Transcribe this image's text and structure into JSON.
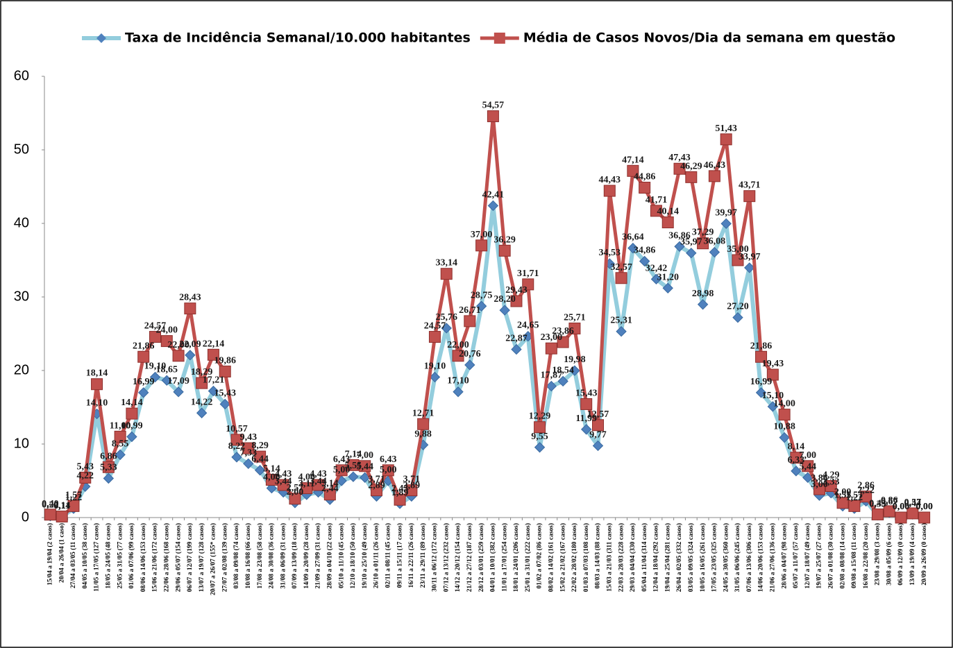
{
  "chart_data": {
    "type": "line",
    "categories": [
      "15/04 a 19/04 (2 casos)",
      "20/04 a 26/04 (1 caso)",
      "27/04 a 03/05 (11 casos)",
      "04/05 a 10/05 (38 casos)",
      "11/05 a 17/05 (127 casos)",
      "18/05 a 24/05 (48 casos)",
      "25/05 a 31/05 (77 casos)",
      "01/06 a 07/06 (99 casos)",
      "08/06 a 14/06 (153 casos)",
      "15/06 a 21/06 (172 casos)",
      "22/06 a 28/06 (168 casos)",
      "29/06 a 05/07 (154 casos)",
      "06/07 a 12/07 (199 casos)",
      "13/07 a 19/07 (128 casos)",
      "20/07 a 26/07 (155* casos)",
      "27/07 a 02/08 (139 casos)",
      "03/08 a 09/08 (74 casos)",
      "10/08 a 16/08 (66 casos)",
      "17/08 a 23/08 (58 casos)",
      "24/08 a 30/08 (36 casos)",
      "31/08 a 06/09 (31 casos)",
      "07/09 a 13/09 (18 casos)",
      "14/09 a 20/09 (28 casos)",
      "21/09 a 27/09 (31 casos)",
      "28/09 a 04/10 (22 casos)",
      "05/10 a 11/10 (45 casos)",
      "12/10 a 18/10 (50 casos)",
      "19/10 a 25/10 (49 casos)",
      "26/10 a 01/11 (26 casos)",
      "02/11 a 08/11 (45 casos)",
      "09/11 a 15/11 (17 casos)",
      "16/11 a 22/11 (26 casos)",
      "23/11 a 29/11 (89 casos)",
      "30/11 a 06/12 (172 casos)",
      "07/12 a 13/12 (232 casos)",
      "14/12 a 20/12 (154 casos)",
      "21/12 a 27/12 (187 casos)",
      "28/12 a 03/01 (259 casos)",
      "04/01 a 10/01 (382 casos)",
      "11/01 a 17/01 (254 casos)",
      "18/01 a 24/01 (206 casos)",
      "25/01 a 31/01 (222 casos)",
      "01/02 a 07/02 (86 casos)",
      "08/02 a 14/02 (161 casos)",
      "15/02 a 21/02 (167 casos)",
      "22/02 a 28/02 (180 casos)",
      "01/03 a 07/03 (108 casos)",
      "08/03 a 14/03 (88 casos)",
      "15/03 a 21/03 (311 casos)",
      "22/03 a 28/03 (228 casos)",
      "29/03 a 04/04 (330 casos)",
      "05/04 a 11/04 (314 casos)",
      "12/04 a 18/04 (292 casos)",
      "19/04 a 25/04 (281 casos)",
      "26/04 a 02/05 (332 casos)",
      "03/05 a 09/05 (324 casos)",
      "10/05 a 16/05 (261 casos)",
      "17/05 a 23/05 (325 casos)",
      "24/05 a 30/05 (360 casos)",
      "31/05 a 06/06 (245 casos)",
      "07/06 a 13/06 (306 casos)",
      "14/06 a 20/06 (153 casos)",
      "21/06 a 27/06 (136 casos)",
      "28/06 a 04/07 (98 casos)",
      "05/07 a 11/07 (57 casos)",
      "12/07 a 18/07 (49 casos)",
      "19/07 a 25/07 (27 casos)",
      "26/07 a 01/08 (30 casos)",
      "02/08 a 08/08 (14 casos)",
      "09/08 a 15/08 (11 casos)",
      "16/08 a 22/08 (20 casos)",
      "23/08 a 29/08 (3 casos)",
      "30/08 a 05/09 (6 casos)",
      "06/09 a 12/09 (0 casos)",
      "13/09 a 19/09 (4 casos)",
      "20/09 a 26/09 (0 casos)"
    ],
    "series": [
      {
        "name": "Taxa de Incidência Semanal/10.000 habitantes",
        "color": "#4f81bd",
        "line_color": "#93cddd",
        "marker": "diamond",
        "values": [
          0.22,
          0.11,
          1.22,
          4.22,
          14.1,
          5.33,
          8.55,
          10.99,
          16.99,
          19.1,
          18.65,
          17.09,
          22.09,
          14.22,
          17.21,
          15.43,
          8.22,
          7.33,
          6.44,
          4.0,
          3.44,
          2.0,
          3.11,
          3.44,
          2.44,
          5.0,
          5.55,
          5.44,
          2.89,
          5.0,
          1.89,
          2.89,
          9.88,
          19.1,
          25.76,
          17.1,
          20.76,
          28.75,
          42.41,
          28.2,
          22.87,
          24.65,
          9.55,
          17.87,
          18.54,
          19.98,
          11.99,
          9.77,
          34.53,
          25.31,
          36.64,
          34.86,
          32.42,
          31.2,
          36.86,
          35.97,
          28.98,
          36.08,
          39.97,
          27.2,
          33.97,
          16.99,
          15.1,
          10.88,
          6.33,
          5.44,
          3.0,
          3.33,
          1.55,
          1.22,
          2.22,
          0.33,
          0.67,
          0,
          0.44,
          0
        ],
        "value_labels": [
          "0,22",
          "0,11",
          "1,22",
          "4,22",
          "14,10",
          "5,33",
          "8,55",
          "10,99",
          "16,99",
          "19,10",
          "18,65",
          "17,09",
          "22,09",
          "14,22",
          "17,21",
          "15,43",
          "8,22",
          "7,33",
          "6,44",
          "4,00",
          "3,44",
          "2,00",
          "3,11",
          "3,44",
          "2,44",
          "5,00",
          "5,55",
          "5,44",
          "2,89",
          "5,00",
          "1,89",
          "2,89",
          "9,88",
          "19,10",
          "25,76",
          "17,10",
          "20,76",
          "28,75",
          "42,41",
          "28,20",
          "22,87",
          "24,65",
          "9,55",
          "17,87",
          "18,54",
          "19,98",
          "11,99",
          "9,77",
          "34,53",
          "25,31",
          "36,64",
          "34,86",
          "32,42",
          "31,20",
          "36,86",
          "35,97",
          "28,98",
          "36,08",
          "39,97",
          "27,20",
          "33,97",
          "16,99",
          "15,10",
          "10,88",
          "6,33",
          "5,44",
          "3,00",
          "3,33",
          "1,55",
          "1,22",
          "2,22",
          "0,33",
          "0,67",
          "0,00",
          "0,44",
          "0,00"
        ]
      },
      {
        "name": "Média de Casos Novos/Dia da semana em questão",
        "color": "#c0504d",
        "line_color": "#c0504d",
        "marker": "square",
        "values": [
          0.4,
          0.14,
          1.57,
          5.43,
          18.14,
          6.86,
          11.0,
          14.14,
          21.86,
          24.57,
          24.0,
          22.0,
          28.43,
          18.29,
          22.14,
          19.86,
          10.57,
          9.43,
          8.29,
          5.14,
          4.43,
          2.57,
          4.0,
          4.43,
          3.14,
          6.43,
          7.14,
          7.0,
          3.71,
          6.43,
          2.43,
          3.71,
          12.71,
          24.57,
          33.14,
          22.0,
          26.71,
          37.0,
          54.57,
          36.29,
          29.43,
          31.71,
          12.29,
          23.0,
          23.86,
          25.71,
          15.43,
          12.57,
          44.43,
          32.57,
          47.14,
          44.86,
          41.71,
          40.14,
          47.43,
          46.29,
          37.29,
          46.43,
          51.43,
          35.0,
          43.71,
          21.86,
          19.43,
          14.0,
          8.14,
          7.0,
          3.86,
          4.29,
          2.0,
          1.57,
          2.86,
          0.43,
          0.86,
          0,
          0.57,
          0
        ],
        "value_labels": [
          "0,40",
          "0,14",
          "1,57",
          "5,43",
          "18,14",
          "6,86",
          "11,00",
          "14,14",
          "21,86",
          "24,57",
          "24,00",
          "22,00",
          "28,43",
          "18,29",
          "22,14",
          "19,86",
          "10,57",
          "9,43",
          "8,29",
          "5,14",
          "4,43",
          "2,57",
          "4,00",
          "4,43",
          "3,14",
          "6,43",
          "7,14",
          "7,00",
          "3,71",
          "6,43",
          "2,43",
          "3,71",
          "12,71",
          "24,57",
          "33,14",
          "22,00",
          "26,71",
          "37,00",
          "54,57",
          "36,29",
          "29,43",
          "31,71",
          "12,29",
          "23,00",
          "23,86",
          "25,71",
          "15,43",
          "12,57",
          "44,43",
          "32,57",
          "47,14",
          "44,86",
          "41,71",
          "40,14",
          "47,43",
          "46,29",
          "37,29",
          "46,43",
          "51,43",
          "35,00",
          "43,71",
          "21,86",
          "19,43",
          "14,00",
          "8,14",
          "7,00",
          "3,86",
          "4,29",
          "2,00",
          "1,57",
          "2,86",
          "0,43",
          "0,86",
          "0,00",
          "0,57",
          "0,00"
        ]
      }
    ],
    "ylim": [
      0,
      60
    ],
    "yticks": [
      0,
      10,
      20,
      30,
      40,
      50,
      60
    ],
    "grid": false,
    "legend": "top"
  }
}
